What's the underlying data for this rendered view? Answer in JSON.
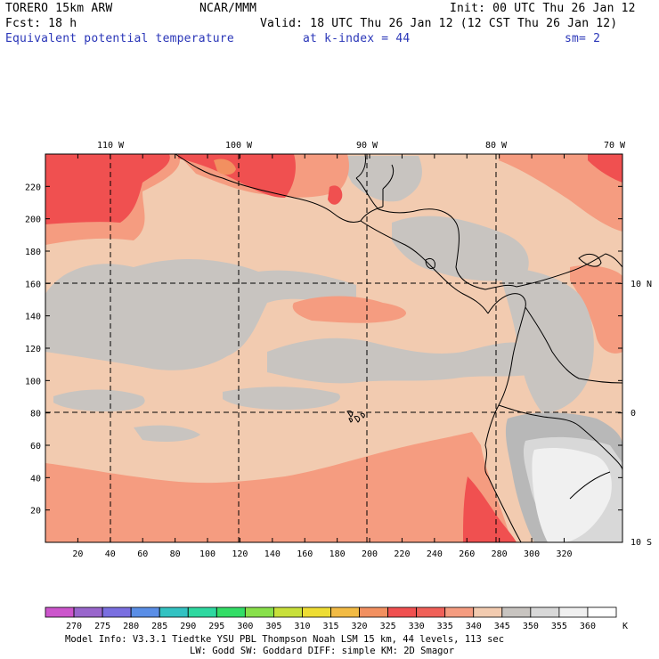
{
  "header": {
    "model": "TORERO  15km ARW",
    "org": "NCAR/MMM",
    "init": "Init: 00 UTC Thu 26 Jan 12",
    "fcst": "Fcst:   18 h",
    "valid": "Valid: 18 UTC Thu 26 Jan 12 (12 CST Thu 26 Jan 12)",
    "field": "Equivalent potential temperature",
    "level": "at k-index =  44",
    "smooth": "sm= 2"
  },
  "axes": {
    "top_lon_labels": [
      "110 W",
      "100 W",
      "90 W",
      "80 W",
      "70 W"
    ],
    "right_lat_labels": [
      "10 N",
      "0",
      "10 S"
    ],
    "left_ticks": [
      "220",
      "200",
      "180",
      "160",
      "140",
      "120",
      "100",
      "80",
      "60",
      "40",
      "20"
    ],
    "bottom_ticks": [
      "20",
      "40",
      "60",
      "80",
      "100",
      "120",
      "140",
      "160",
      "180",
      "200",
      "220",
      "240",
      "260",
      "280",
      "300",
      "320"
    ]
  },
  "colorbar": {
    "labels": [
      "270",
      "275",
      "280",
      "285",
      "290",
      "295",
      "300",
      "305",
      "310",
      "315",
      "320",
      "325",
      "330",
      "335",
      "340",
      "345",
      "350",
      "355",
      "360"
    ],
    "unit": "K",
    "colors": [
      "#cc55cc",
      "#9966cc",
      "#7a6fe0",
      "#5a8ee6",
      "#33c2c2",
      "#2ed8a0",
      "#33dd66",
      "#88e04a",
      "#c8e03a",
      "#eedd33",
      "#f2bb44",
      "#f29060",
      "#f05050",
      "#f06058",
      "#f59c80",
      "#f2cbb0",
      "#c8c4c0",
      "#d8d8d8",
      "#f0f0f0",
      "#ffffff"
    ]
  },
  "footer": {
    "line1": "Model Info: V3.3.1    Tiedtke YSU PBL  Thompson    Noah LSM  15 km,   44 levels,  113 sec",
    "line2": "LW: Godd SW: Goddard DIFF: simple KM: 2D Smagor"
  }
}
